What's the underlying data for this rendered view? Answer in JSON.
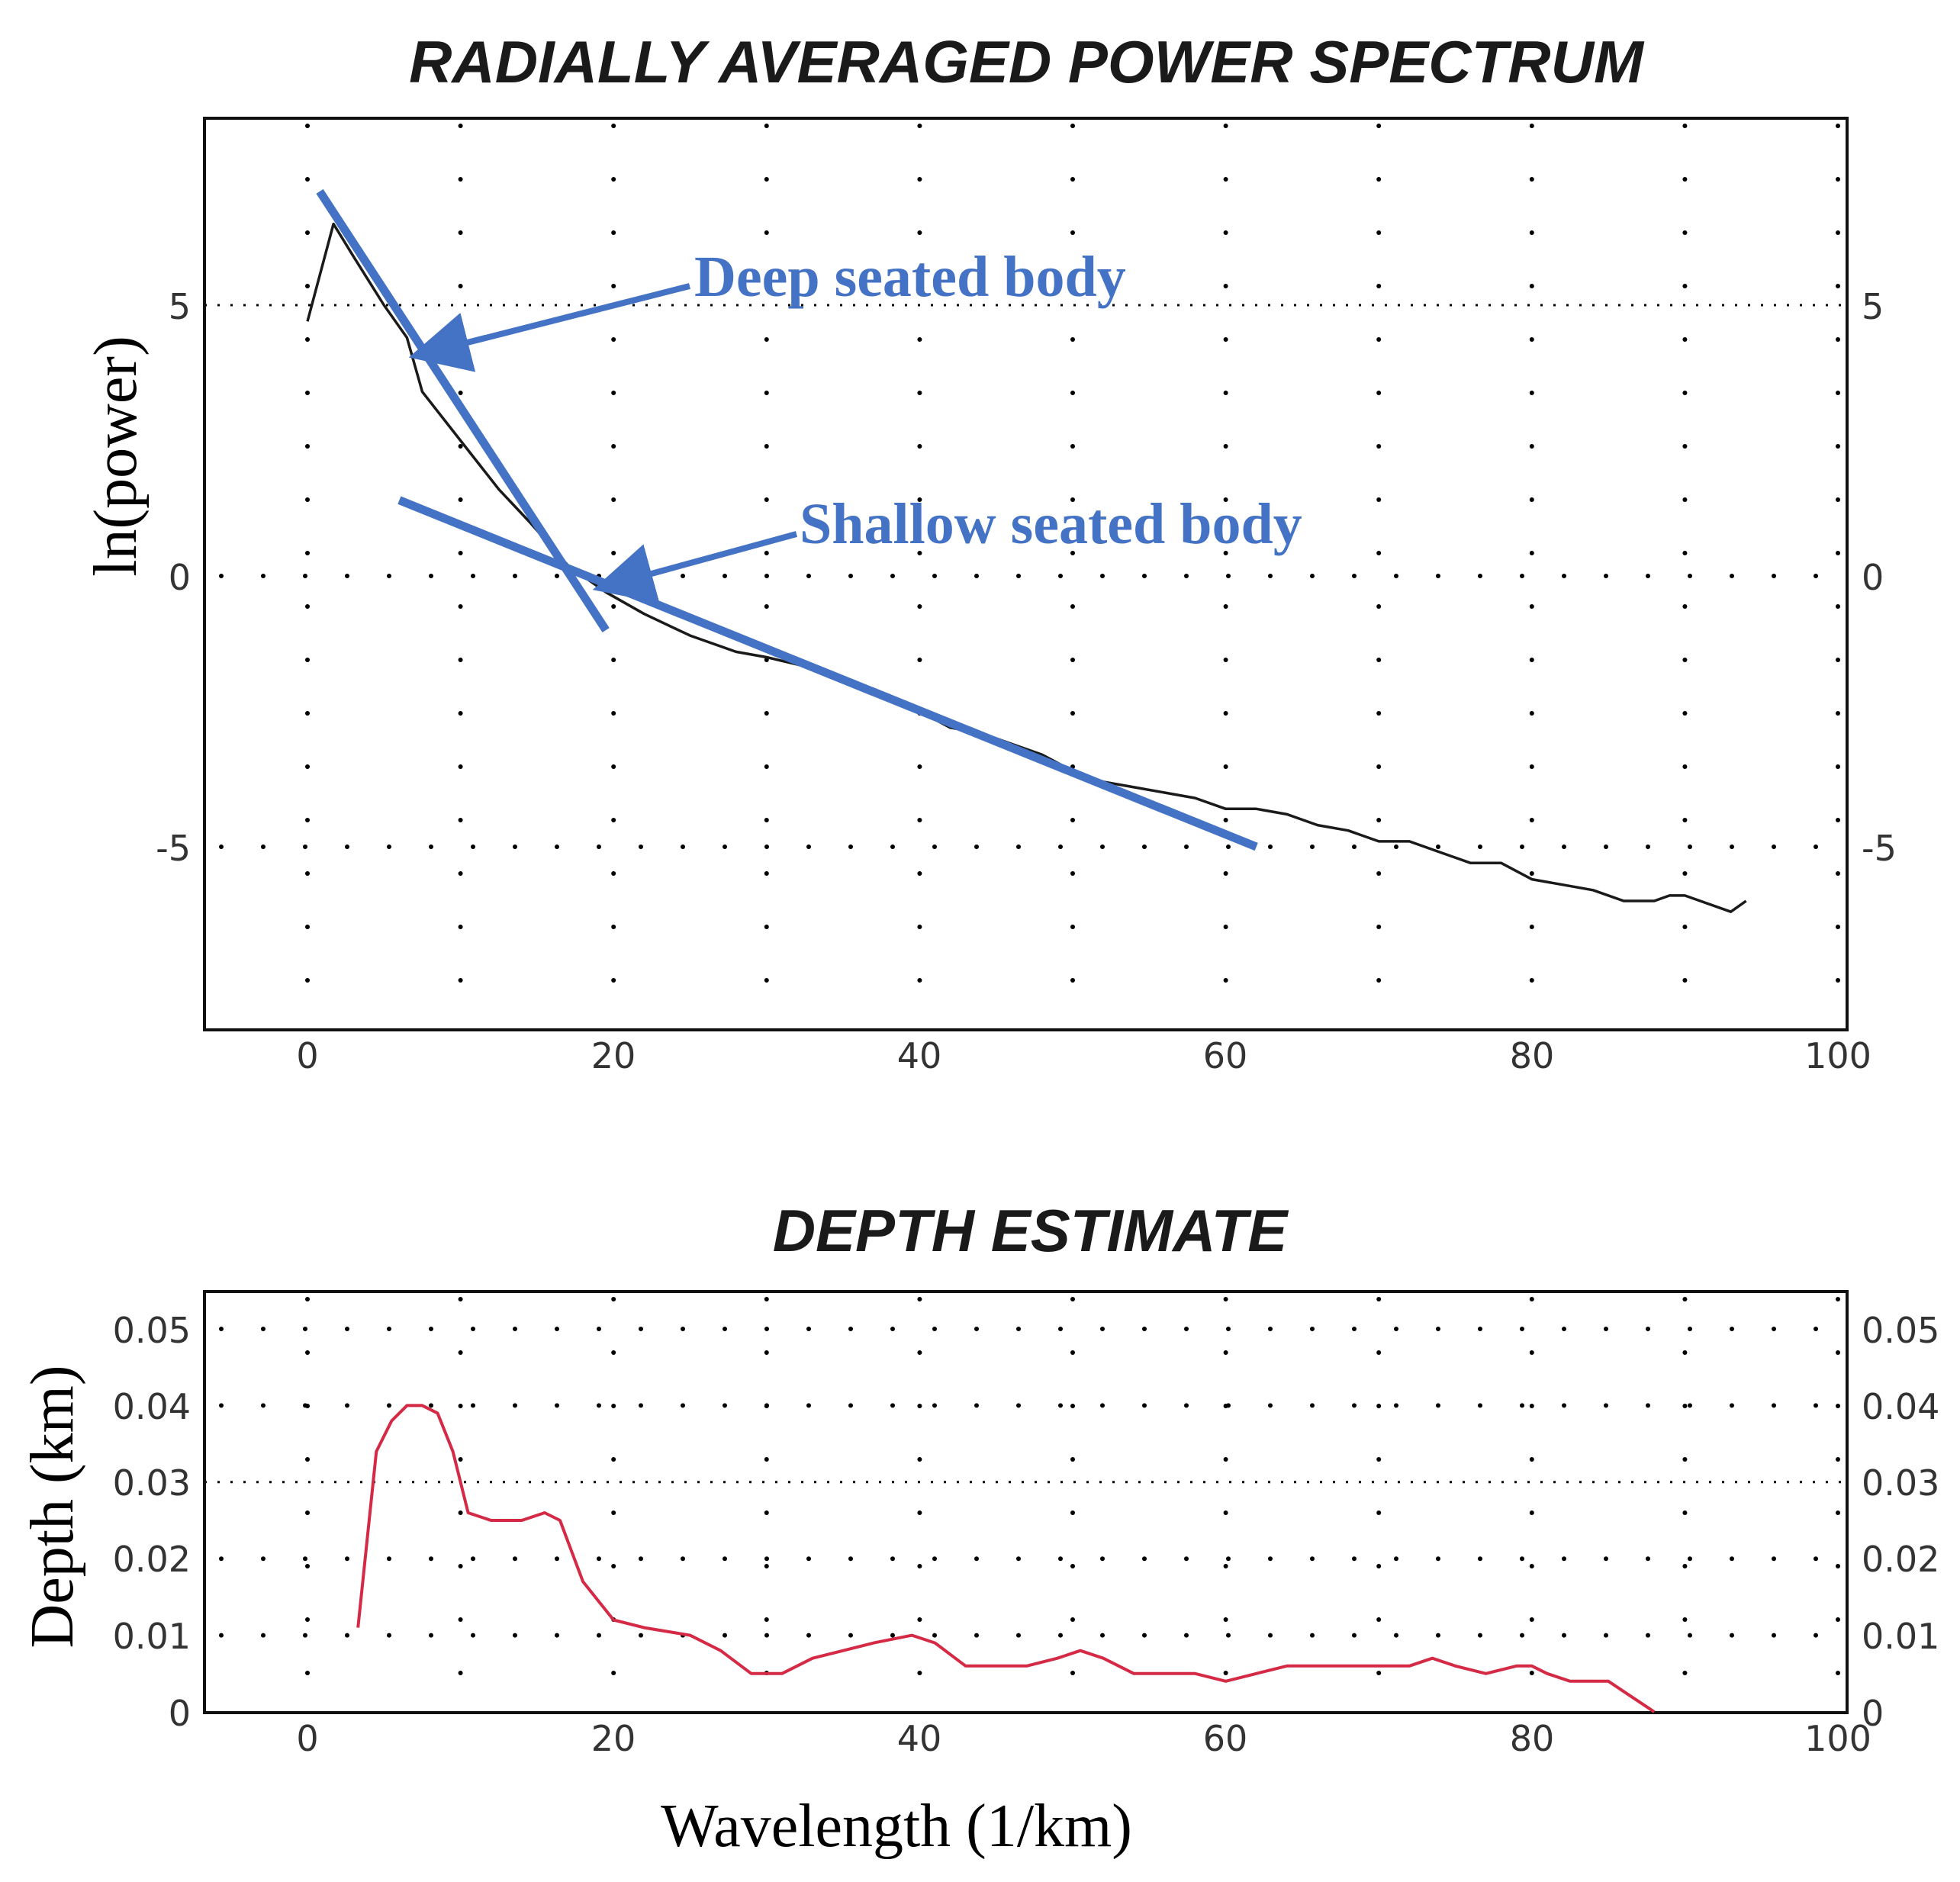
{
  "colors": {
    "annotation": "#4472c4",
    "spectrum": "#1a1a1a",
    "depth": "#d42a45",
    "axis": "#111111",
    "grid": "#000000"
  },
  "chart_data": [
    {
      "type": "line",
      "title": "RADIALLY AVERAGED POWER SPECTRUM",
      "xlabel": "",
      "ylabel": "ln(power)",
      "xlim": [
        -7,
        101
      ],
      "ylim": [
        -8.3,
        8.5
      ],
      "x_ticks": [
        0,
        20,
        40,
        60,
        80,
        100
      ],
      "x_tick_labels": [
        "0",
        "20",
        "40",
        "60",
        "80",
        "100"
      ],
      "y_ticks": [
        5,
        0,
        -5
      ],
      "y_tick_labels_left": [
        "5",
        "0",
        "-5"
      ],
      "y_tick_labels_right": [
        "5",
        "0",
        "-5"
      ],
      "series": [
        {
          "name": "ln(power)",
          "x": [
            0,
            1.7,
            3,
            5,
            6.5,
            7.5,
            10,
            12.5,
            14.5,
            17,
            19.5,
            22,
            25,
            28,
            30,
            33,
            36,
            38,
            40,
            42,
            44,
            46,
            48,
            50,
            52,
            54,
            56,
            58,
            60,
            62,
            64,
            66,
            68,
            70,
            72,
            74,
            76,
            78,
            80,
            82,
            84,
            86,
            88,
            89,
            90,
            91,
            93,
            94
          ],
          "y": [
            4.7,
            6.5,
            5.9,
            5.0,
            4.4,
            3.4,
            2.5,
            1.6,
            1.0,
            0.2,
            -0.3,
            -0.7,
            -1.1,
            -1.4,
            -1.5,
            -1.7,
            -2.0,
            -2.2,
            -2.5,
            -2.8,
            -2.9,
            -3.1,
            -3.3,
            -3.6,
            -3.8,
            -3.9,
            -4.0,
            -4.1,
            -4.3,
            -4.3,
            -4.4,
            -4.6,
            -4.7,
            -4.9,
            -4.9,
            -5.1,
            -5.3,
            -5.3,
            -5.6,
            -5.7,
            -5.8,
            -6.0,
            -6.0,
            -5.9,
            -5.9,
            -6.0,
            -6.2,
            -6.0
          ]
        }
      ],
      "trend_lines": [
        {
          "name": "Deep seated body",
          "x": [
            0.8,
            19.5
          ],
          "y": [
            7.1,
            -1.0
          ]
        },
        {
          "name": "Shallow seated body",
          "x": [
            6,
            62
          ],
          "y": [
            1.4,
            -5.0
          ]
        }
      ],
      "annotations": [
        {
          "text": "Deep seated body",
          "arrow_to": [
            9,
            4.2
          ]
        },
        {
          "text": "Shallow seated body",
          "arrow_to": [
            21,
            -0.1
          ]
        }
      ]
    },
    {
      "type": "line",
      "title": "DEPTH ESTIMATE",
      "xlabel": "Wavelength (1/km)",
      "ylabel": "Depth (km)",
      "xlim": [
        -7,
        101
      ],
      "ylim": [
        0,
        0.056
      ],
      "x_ticks": [
        0,
        20,
        40,
        60,
        80,
        100
      ],
      "x_tick_labels": [
        "0",
        "20",
        "40",
        "60",
        "80",
        "100"
      ],
      "y_ticks": [
        0,
        0.01,
        0.02,
        0.03,
        0.04,
        0.05
      ],
      "y_tick_labels_left": [
        "0",
        "0.01",
        "0.02",
        "0.03",
        "0.04",
        "0.05"
      ],
      "y_tick_labels_right": [
        "0",
        "0.01",
        "0.02",
        "0.03",
        "0.04",
        "0.05"
      ],
      "series": [
        {
          "name": "Depth",
          "x": [
            3.3,
            4.5,
            5.5,
            6.5,
            7.5,
            8.5,
            9.5,
            10.5,
            12,
            14,
            15.5,
            16.5,
            18,
            20,
            22,
            25,
            27,
            29,
            31,
            33,
            35,
            37,
            39.5,
            41,
            43,
            45,
            47,
            49,
            50.5,
            52,
            54,
            56,
            58,
            60,
            62,
            64,
            66,
            68,
            70,
            72,
            73.5,
            75,
            77,
            79,
            80,
            81,
            82.5,
            84,
            85,
            86.5,
            88
          ],
          "y": [
            0.011,
            0.034,
            0.038,
            0.04,
            0.04,
            0.039,
            0.034,
            0.026,
            0.025,
            0.025,
            0.026,
            0.025,
            0.017,
            0.012,
            0.011,
            0.01,
            0.008,
            0.005,
            0.005,
            0.007,
            0.008,
            0.009,
            0.01,
            0.009,
            0.006,
            0.006,
            0.006,
            0.007,
            0.008,
            0.007,
            0.005,
            0.005,
            0.005,
            0.004,
            0.005,
            0.006,
            0.006,
            0.006,
            0.006,
            0.006,
            0.007,
            0.006,
            0.005,
            0.006,
            0.006,
            0.005,
            0.004,
            0.004,
            0.004,
            0.002,
            0.0
          ]
        }
      ]
    }
  ]
}
